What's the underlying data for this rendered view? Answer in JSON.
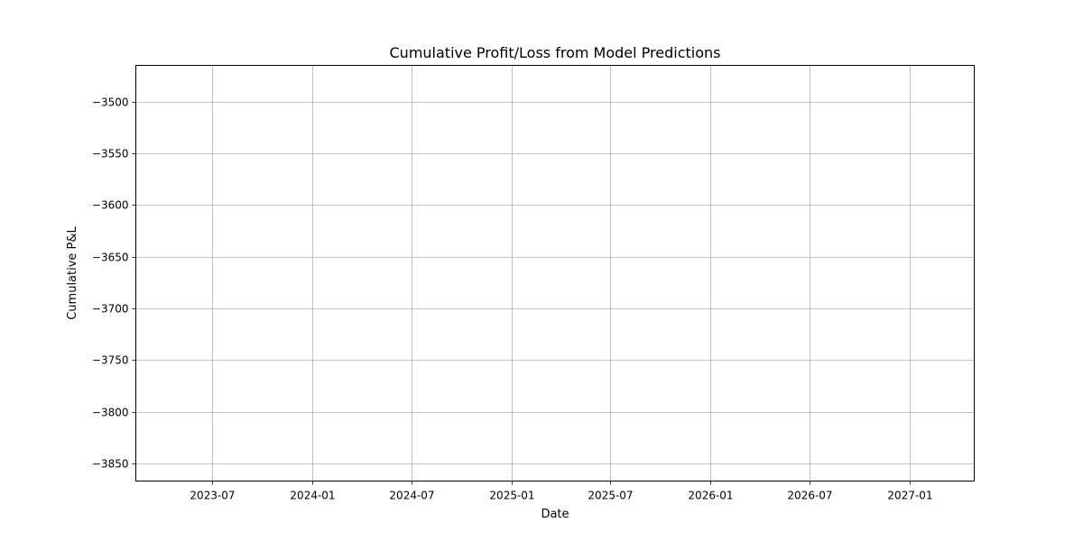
{
  "chart_data": {
    "type": "line",
    "title": "Cumulative Profit/Loss from Model Predictions",
    "xlabel": "Date",
    "ylabel": "Cumulative P&L",
    "x_ticks": [
      "2023-07",
      "2024-01",
      "2024-07",
      "2025-01",
      "2025-07",
      "2026-01",
      "2026-07",
      "2027-01"
    ],
    "y_ticks": [
      -3500,
      -3550,
      -3600,
      -3650,
      -3700,
      -3750,
      -3800,
      -3850
    ],
    "xlim": [
      "2023-02-11",
      "2027-04-30"
    ],
    "ylim": [
      -3867,
      -3465
    ],
    "grid": true,
    "series": []
  }
}
